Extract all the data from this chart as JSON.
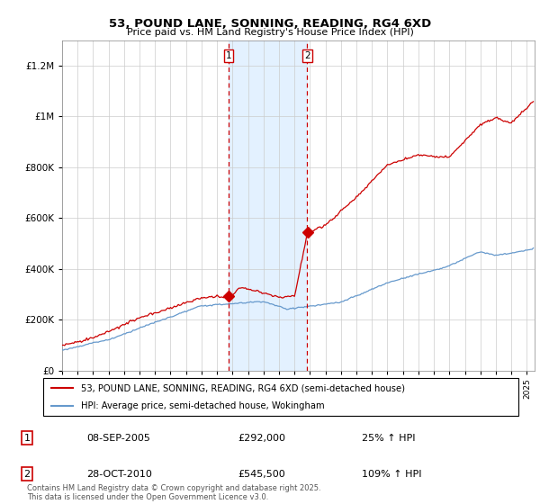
{
  "title": "53, POUND LANE, SONNING, READING, RG4 6XD",
  "subtitle": "Price paid vs. HM Land Registry's House Price Index (HPI)",
  "legend_line1": "53, POUND LANE, SONNING, READING, RG4 6XD (semi-detached house)",
  "legend_line2": "HPI: Average price, semi-detached house, Wokingham",
  "annotation1_label": "1",
  "annotation1_date": "08-SEP-2005",
  "annotation1_price": "£292,000",
  "annotation1_hpi": "25% ↑ HPI",
  "annotation2_label": "2",
  "annotation2_date": "28-OCT-2010",
  "annotation2_price": "£545,500",
  "annotation2_hpi": "109% ↑ HPI",
  "footer": "Contains HM Land Registry data © Crown copyright and database right 2025.\nThis data is licensed under the Open Government Licence v3.0.",
  "vline1_year": 2005.75,
  "vline2_year": 2010.83,
  "shade_start": 2005.75,
  "shade_end": 2010.83,
  "purchase1_price": 292000,
  "purchase2_price": 545500,
  "ylim_min": 0,
  "ylim_max": 1300000,
  "xlim_min": 1995.0,
  "xlim_max": 2025.5,
  "red_color": "#cc0000",
  "blue_color": "#6699cc",
  "shade_color": "#ddeeff",
  "background_color": "#ffffff",
  "grid_color": "#cccccc"
}
